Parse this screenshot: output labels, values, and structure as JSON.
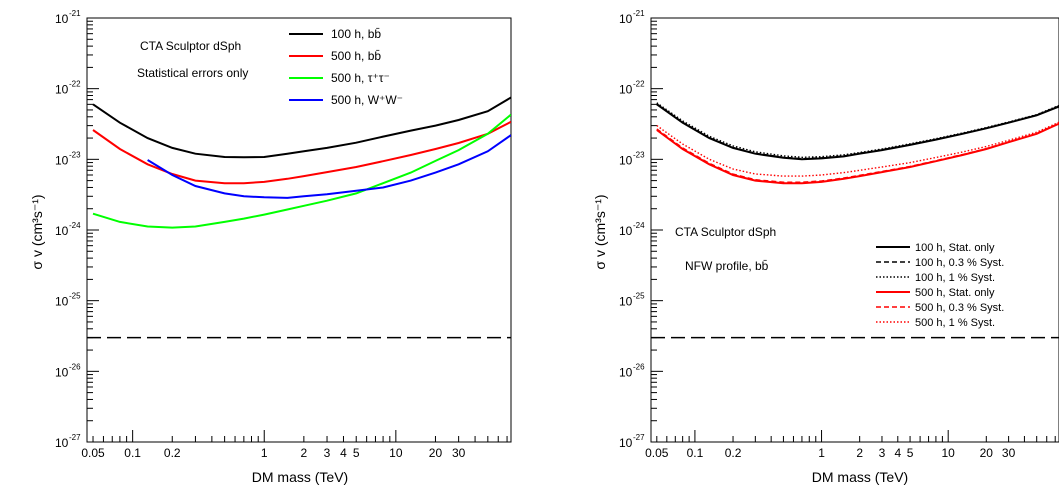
{
  "colors": {
    "black": "#000000",
    "red": "#ff0000",
    "green": "#00ff00",
    "blue": "#0000ff"
  },
  "chart_data": [
    {
      "type": "line",
      "xlabel": "DM mass (TeV)",
      "ylabel": "σ v (cm³s⁻¹)",
      "xscale": "log",
      "yscale": "log",
      "xlim": [
        0.045,
        75
      ],
      "ylim": [
        1e-27,
        1e-21
      ],
      "x_tick_labels": [
        {
          "value": 0.05,
          "label": "0.05"
        },
        {
          "value": 0.1,
          "label": "0.1"
        },
        {
          "value": 0.2,
          "label": "0.2"
        },
        {
          "value": 1,
          "label": "1"
        },
        {
          "value": 2,
          "label": "2"
        },
        {
          "value": 3,
          "label": "3"
        },
        {
          "value": 4,
          "label": "4"
        },
        {
          "value": 5,
          "label": "5"
        },
        {
          "value": 10,
          "label": "10"
        },
        {
          "value": 20,
          "label": "20"
        },
        {
          "value": 30,
          "label": "30"
        }
      ],
      "y_tick_exponents": [
        -27,
        -26,
        -25,
        -24,
        -23,
        -22,
        -21
      ],
      "annotations": [
        "CTA Sculptor dSph",
        "Statistical errors only"
      ],
      "legend_placement": "top-right",
      "reference_line": {
        "y": 3e-26,
        "style": "dashed",
        "color": "#000000"
      },
      "series": [
        {
          "name": "100 h, bb̄",
          "color": "#000000",
          "dash": "solid",
          "x": [
            0.05,
            0.08,
            0.13,
            0.2,
            0.3,
            0.5,
            0.7,
            1,
            1.5,
            2,
            3,
            5,
            8,
            13,
            20,
            30,
            50,
            75
          ],
          "y": [
            6e-23,
            3.3e-23,
            2e-23,
            1.45e-23,
            1.2e-23,
            1.08e-23,
            1.07e-23,
            1.08e-23,
            1.2e-23,
            1.3e-23,
            1.45e-23,
            1.72e-23,
            2.1e-23,
            2.55e-23,
            3e-23,
            3.6e-23,
            4.8e-23,
            7.5e-23
          ]
        },
        {
          "name": "500 h, bb̄",
          "color": "#ff0000",
          "dash": "solid",
          "x": [
            0.05,
            0.08,
            0.13,
            0.2,
            0.3,
            0.5,
            0.7,
            1,
            1.5,
            2,
            3,
            5,
            8,
            13,
            20,
            30,
            50,
            75
          ],
          "y": [
            2.6e-23,
            1.4e-23,
            8.5e-24,
            6.2e-24,
            5e-24,
            4.6e-24,
            4.6e-24,
            4.8e-24,
            5.3e-24,
            5.8e-24,
            6.6e-24,
            7.8e-24,
            9.4e-24,
            1.15e-23,
            1.4e-23,
            1.7e-23,
            2.3e-23,
            3.4e-23
          ]
        },
        {
          "name": "500 h, τ⁺τ⁻",
          "color": "#00ff00",
          "dash": "solid",
          "x": [
            0.05,
            0.08,
            0.13,
            0.2,
            0.3,
            0.5,
            0.7,
            1,
            1.5,
            2,
            3,
            5,
            8,
            13,
            20,
            30,
            50,
            75
          ],
          "y": [
            1.7e-24,
            1.3e-24,
            1.12e-24,
            1.08e-24,
            1.12e-24,
            1.3e-24,
            1.45e-24,
            1.65e-24,
            1.95e-24,
            2.2e-24,
            2.6e-24,
            3.3e-24,
            4.6e-24,
            6.5e-24,
            9.5e-24,
            1.35e-23,
            2.3e-23,
            4.3e-23
          ]
        },
        {
          "name": "500 h, W⁺W⁻",
          "color": "#0000ff",
          "dash": "solid",
          "x": [
            0.13,
            0.2,
            0.3,
            0.5,
            0.7,
            1,
            1.5,
            2,
            3,
            5,
            8,
            13,
            20,
            30,
            50,
            75
          ],
          "y": [
            9.8e-24,
            6e-24,
            4.2e-24,
            3.3e-24,
            3e-24,
            2.9e-24,
            2.85e-24,
            3e-24,
            3.2e-24,
            3.6e-24,
            4e-24,
            5e-24,
            6.5e-24,
            8.5e-24,
            1.3e-23,
            2.2e-23
          ]
        }
      ]
    },
    {
      "type": "line",
      "xlabel": "DM mass (TeV)",
      "ylabel": "σ v (cm³s⁻¹)",
      "xscale": "log",
      "yscale": "log",
      "xlim": [
        0.045,
        75
      ],
      "ylim": [
        1e-27,
        1e-21
      ],
      "x_tick_labels": [
        {
          "value": 0.05,
          "label": "0.05"
        },
        {
          "value": 0.1,
          "label": "0.1"
        },
        {
          "value": 0.2,
          "label": "0.2"
        },
        {
          "value": 1,
          "label": "1"
        },
        {
          "value": 2,
          "label": "2"
        },
        {
          "value": 3,
          "label": "3"
        },
        {
          "value": 4,
          "label": "4"
        },
        {
          "value": 5,
          "label": "5"
        },
        {
          "value": 10,
          "label": "10"
        },
        {
          "value": 20,
          "label": "20"
        },
        {
          "value": 30,
          "label": "30"
        }
      ],
      "y_tick_exponents": [
        -27,
        -26,
        -25,
        -24,
        -23,
        -22,
        -21
      ],
      "annotations": [
        "CTA Sculptor dSph",
        "NFW profile, bb̄"
      ],
      "legend_placement": "center-right",
      "reference_line": {
        "y": 3e-26,
        "style": "dashed",
        "color": "#000000"
      },
      "series": [
        {
          "name": "100 h, Stat. only",
          "color": "#000000",
          "dash": "solid",
          "x": [
            0.05,
            0.08,
            0.13,
            0.2,
            0.3,
            0.5,
            0.7,
            1,
            1.5,
            2,
            3,
            5,
            8,
            13,
            20,
            30,
            50,
            75
          ],
          "y": [
            6e-23,
            3.3e-23,
            2e-23,
            1.45e-23,
            1.2e-23,
            1.05e-23,
            1e-23,
            1.03e-23,
            1.1e-23,
            1.2e-23,
            1.35e-23,
            1.6e-23,
            1.9e-23,
            2.3e-23,
            2.75e-23,
            3.3e-23,
            4.2e-23,
            5.6e-23
          ]
        },
        {
          "name": "100 h, 0.3 % Syst.",
          "color": "#000000",
          "dash": "dashed",
          "x": [
            0.05,
            0.08,
            0.13,
            0.2,
            0.3,
            0.5,
            0.7,
            1,
            1.5,
            2,
            3,
            5,
            8,
            13,
            20,
            30,
            50,
            75
          ],
          "y": [
            6.1e-23,
            3.35e-23,
            2.03e-23,
            1.47e-23,
            1.22e-23,
            1.07e-23,
            1.02e-23,
            1.05e-23,
            1.12e-23,
            1.22e-23,
            1.37e-23,
            1.62e-23,
            1.92e-23,
            2.32e-23,
            2.78e-23,
            3.33e-23,
            4.25e-23,
            5.7e-23
          ]
        },
        {
          "name": "100 h, 1 % Syst.",
          "color": "#000000",
          "dash": "dotted",
          "x": [
            0.05,
            0.08,
            0.13,
            0.2,
            0.3,
            0.5,
            0.7,
            1,
            1.5,
            2,
            3,
            5,
            8,
            13,
            20,
            30,
            50,
            75
          ],
          "y": [
            6.3e-23,
            3.5e-23,
            2.12e-23,
            1.55e-23,
            1.28e-23,
            1.12e-23,
            1.07e-23,
            1.09e-23,
            1.16e-23,
            1.25e-23,
            1.4e-23,
            1.66e-23,
            1.96e-23,
            2.36e-23,
            2.82e-23,
            3.38e-23,
            4.3e-23,
            5.8e-23
          ]
        },
        {
          "name": "500 h, Stat.  only",
          "color": "#ff0000",
          "dash": "solid",
          "x": [
            0.05,
            0.08,
            0.13,
            0.2,
            0.3,
            0.5,
            0.7,
            1,
            1.5,
            2,
            3,
            5,
            8,
            13,
            20,
            30,
            50,
            75
          ],
          "y": [
            2.6e-23,
            1.4e-23,
            8.5e-24,
            6e-24,
            5e-24,
            4.6e-24,
            4.6e-24,
            4.8e-24,
            5.3e-24,
            5.8e-24,
            6.6e-24,
            7.8e-24,
            9.4e-24,
            1.15e-23,
            1.4e-23,
            1.75e-23,
            2.3e-23,
            3.2e-23
          ]
        },
        {
          "name": "500 h, 0.3 % Syst.",
          "color": "#ff0000",
          "dash": "dashed",
          "x": [
            0.05,
            0.08,
            0.13,
            0.2,
            0.3,
            0.5,
            0.7,
            1,
            1.5,
            2,
            3,
            5,
            8,
            13,
            20,
            30,
            50,
            75
          ],
          "y": [
            2.7e-23,
            1.45e-23,
            8.8e-24,
            6.2e-24,
            5.15e-24,
            4.75e-24,
            4.75e-24,
            4.95e-24,
            5.45e-24,
            5.95e-24,
            6.75e-24,
            7.95e-24,
            9.55e-24,
            1.17e-23,
            1.42e-23,
            1.77e-23,
            2.33e-23,
            3.25e-23
          ]
        },
        {
          "name": "500 h, 1 % Syst.",
          "color": "#ff0000",
          "dash": "dotted",
          "x": [
            0.05,
            0.08,
            0.13,
            0.2,
            0.3,
            0.5,
            0.7,
            1,
            1.5,
            2,
            3,
            5,
            8,
            13,
            20,
            30,
            50,
            75
          ],
          "y": [
            3e-23,
            1.65e-23,
            1e-23,
            7.3e-24,
            6.2e-24,
            5.8e-24,
            5.8e-24,
            6e-24,
            6.5e-24,
            7e-24,
            7.8e-24,
            9e-24,
            1.06e-23,
            1.27e-23,
            1.52e-23,
            1.86e-23,
            2.42e-23,
            3.35e-23
          ]
        }
      ]
    }
  ]
}
